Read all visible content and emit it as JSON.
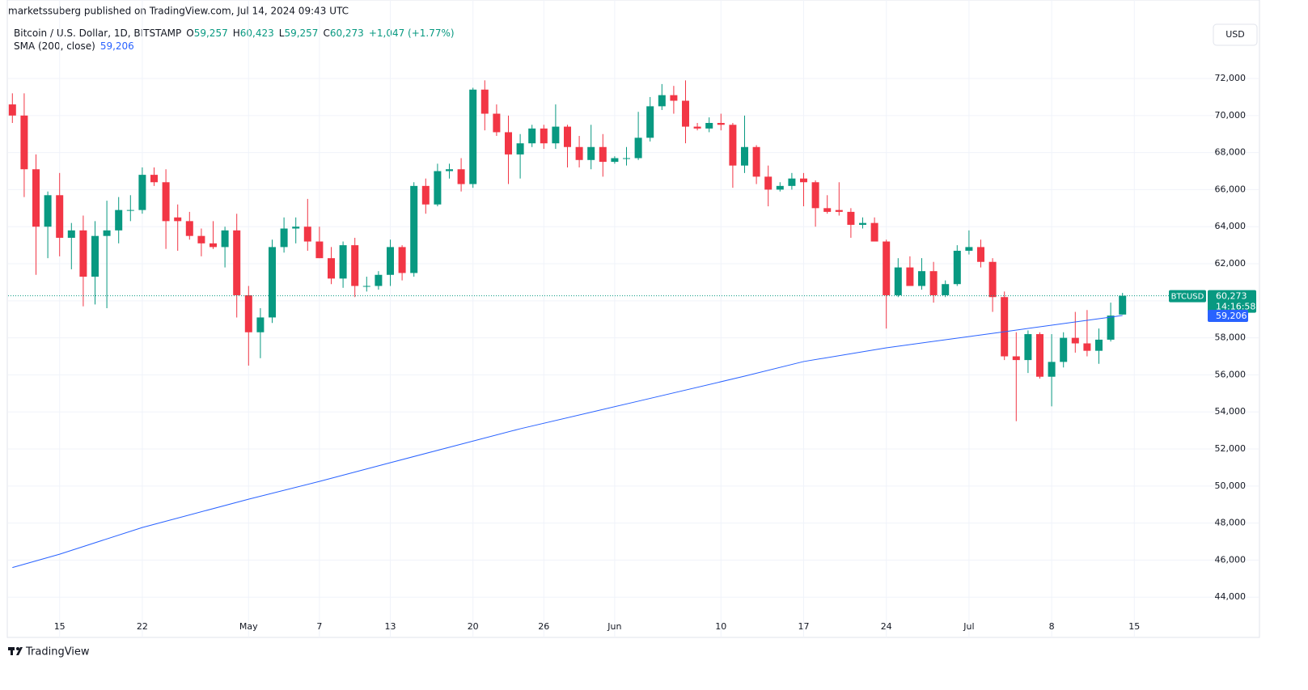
{
  "header": {
    "publisher": "marketssuberg published on TradingView.com, Jul 14, 2024 09:43 UTC"
  },
  "legend": {
    "symbol": "Bitcoin / U.S. Dollar, 1D, BITSTAMP",
    "ohlc": [
      {
        "key": "O",
        "value": "59,257"
      },
      {
        "key": "H",
        "value": "60,423"
      },
      {
        "key": "L",
        "value": "59,257"
      },
      {
        "key": "C",
        "value": "60,273"
      }
    ],
    "change": "+1,047 (+1.77%)",
    "sma_value": "59,206"
  },
  "currency": "USD",
  "last_price": {
    "symbol": "BTCUSD",
    "label": "60,273",
    "countdown": "14:16:58"
  },
  "sma_label": "59,206",
  "footer": {
    "brand": "TradingView"
  },
  "chart_data": {
    "type": "candlestick",
    "categories": [
      "Apr 11",
      "Apr 12",
      "Apr 13",
      "Apr 14",
      "Apr 15",
      "Apr 16",
      "Apr 17",
      "Apr 18",
      "Apr 19",
      "Apr 20",
      "Apr 21",
      "Apr 22",
      "Apr 23",
      "Apr 24",
      "Apr 25",
      "Apr 26",
      "Apr 27",
      "Apr 28",
      "Apr 29",
      "Apr 30",
      "May 1",
      "May 2",
      "May 3",
      "May 4",
      "May 5",
      "May 6",
      "May 7",
      "May 8",
      "May 9",
      "May 10",
      "May 11",
      "May 12",
      "May 13",
      "May 14",
      "May 15",
      "May 16",
      "May 17",
      "May 18",
      "May 19",
      "May 20",
      "May 21",
      "May 22",
      "May 23",
      "May 24",
      "May 25",
      "May 26",
      "May 27",
      "May 28",
      "May 29",
      "May 30",
      "May 31",
      "Jun 1",
      "Jun 2",
      "Jun 3",
      "Jun 4",
      "Jun 5",
      "Jun 6",
      "Jun 7",
      "Jun 8",
      "Jun 9",
      "Jun 10",
      "Jun 11",
      "Jun 12",
      "Jun 13",
      "Jun 14",
      "Jun 15",
      "Jun 16",
      "Jun 17",
      "Jun 18",
      "Jun 19",
      "Jun 20",
      "Jun 21",
      "Jun 22",
      "Jun 23",
      "Jun 24",
      "Jun 25",
      "Jun 26",
      "Jun 27",
      "Jun 28",
      "Jun 29",
      "Jun 30",
      "Jul 1",
      "Jul 2",
      "Jul 3",
      "Jul 4",
      "Jul 5",
      "Jul 6",
      "Jul 7",
      "Jul 8",
      "Jul 9",
      "Jul 10",
      "Jul 11",
      "Jul 12",
      "Jul 13",
      "Jul 14",
      "Jul 15"
    ],
    "open": [
      70600,
      70000,
      67100,
      64000,
      65700,
      63400,
      63800,
      61300,
      63500,
      63800,
      64900,
      64900,
      66800,
      66400,
      64500,
      64300,
      63500,
      63100,
      62900,
      63800,
      60300,
      58300,
      59100,
      62900,
      63900,
      64000,
      63200,
      62300,
      61200,
      63000,
      60800,
      60800,
      61400,
      62900,
      61500,
      66200,
      65200,
      67000,
      67100,
      66300,
      71400,
      70100,
      69100,
      67900,
      68500,
      69300,
      68500,
      69400,
      68300,
      67600,
      68300,
      67500,
      67700,
      67700,
      68800,
      70500,
      71100,
      70800,
      69400,
      69300,
      69600,
      69500,
      67300,
      68300,
      66700,
      66000,
      66200,
      66600,
      66400,
      65000,
      64900,
      64800,
      64100,
      64200,
      63200,
      60300,
      61800,
      60800,
      61600,
      60300,
      60900,
      62700,
      62900,
      62100,
      60200,
      57000,
      56800,
      58200,
      55900,
      56700,
      58000,
      57700,
      57300,
      57900,
      59257,
      null
    ],
    "high": [
      71200,
      71200,
      67900,
      65900,
      66900,
      64200,
      64600,
      64300,
      65400,
      65600,
      65700,
      67200,
      67200,
      67100,
      65200,
      64800,
      63900,
      64300,
      64000,
      64700,
      60800,
      59600,
      63300,
      64500,
      64500,
      65500,
      64000,
      62900,
      63200,
      63400,
      61300,
      61600,
      63300,
      63000,
      66400,
      66600,
      67400,
      67400,
      67700,
      71500,
      71900,
      70600,
      70000,
      69000,
      69500,
      69500,
      70600,
      69500,
      68900,
      69500,
      69000,
      67800,
      68300,
      70200,
      71000,
      71700,
      71600,
      71900,
      69600,
      69900,
      70100,
      69600,
      70000,
      68400,
      67300,
      66400,
      66900,
      66900,
      66500,
      65700,
      66400,
      65000,
      64500,
      64500,
      63300,
      62300,
      62400,
      62300,
      62100,
      61100,
      63000,
      63800,
      63300,
      62300,
      60500,
      58300,
      58400,
      58300,
      58200,
      58300,
      59400,
      59500,
      58500,
      59900,
      60423,
      null
    ],
    "low": [
      69600,
      65600,
      61400,
      62300,
      62400,
      61700,
      59700,
      59800,
      59600,
      63100,
      64300,
      64700,
      66200,
      62800,
      62700,
      63300,
      62400,
      62800,
      61800,
      59100,
      56500,
      56900,
      58800,
      62600,
      63100,
      62700,
      62300,
      60900,
      60700,
      60200,
      60500,
      60600,
      60800,
      61100,
      61300,
      64700,
      65100,
      66600,
      65900,
      66100,
      69200,
      68900,
      66300,
      66600,
      68300,
      68200,
      68200,
      67200,
      67200,
      67100,
      66700,
      67400,
      67300,
      67600,
      68600,
      70300,
      70100,
      68500,
      69200,
      69100,
      69200,
      66100,
      66900,
      66300,
      65100,
      65900,
      66000,
      65100,
      64000,
      64700,
      64600,
      63400,
      63900,
      63300,
      58500,
      60200,
      60800,
      60600,
      59900,
      60200,
      60800,
      62500,
      61800,
      59400,
      56800,
      53500,
      56100,
      55800,
      54300,
      56400,
      57200,
      57000,
      56600,
      57800,
      59257,
      null
    ],
    "close": [
      70000,
      67100,
      64000,
      65700,
      63400,
      63800,
      61300,
      63500,
      63800,
      64900,
      64900,
      66800,
      66400,
      64300,
      64300,
      63500,
      63100,
      62900,
      63800,
      60300,
      58300,
      59100,
      62900,
      63900,
      64000,
      63200,
      62300,
      61200,
      63000,
      60800,
      60800,
      61400,
      62900,
      61500,
      66200,
      65200,
      67000,
      67100,
      66300,
      71400,
      70100,
      69100,
      67900,
      68500,
      69300,
      68500,
      69400,
      68300,
      67600,
      68300,
      67500,
      67700,
      67700,
      68800,
      70500,
      71100,
      70800,
      69400,
      69300,
      69600,
      69500,
      67300,
      68300,
      66700,
      66000,
      66200,
      66600,
      66400,
      65000,
      64800,
      64800,
      64100,
      64200,
      63200,
      60300,
      61800,
      60800,
      61600,
      60300,
      60900,
      62700,
      62900,
      62100,
      60200,
      57000,
      56800,
      58200,
      55900,
      56700,
      58000,
      57700,
      57300,
      57900,
      59200,
      60273,
      null
    ],
    "up_color": "#089981",
    "down_color": "#f23645",
    "series": [
      {
        "name": "SMA (200, close)",
        "color": "#2962ff",
        "x": [
          "Apr 11",
          "Apr 15",
          "Apr 22",
          "May 1",
          "May 7",
          "May 13",
          "May 24",
          "Jun 3",
          "Jun 12",
          "Jun 17",
          "Jun 24",
          "Jul 4",
          "Jul 9",
          "Jul 14"
        ],
        "values": [
          45600,
          46320,
          47760,
          49290,
          50250,
          51260,
          53090,
          54580,
          55930,
          56720,
          57460,
          58330,
          58770,
          59206
        ]
      }
    ],
    "ylim": [
      41870,
      76150
    ],
    "yticks": [
      {
        "value": 44000,
        "label": "44,000"
      },
      {
        "value": 46000,
        "label": "46,000"
      },
      {
        "value": 48000,
        "label": "48,000"
      },
      {
        "value": 50000,
        "label": "50,000"
      },
      {
        "value": 52000,
        "label": "52,000"
      },
      {
        "value": 54000,
        "label": "54,000"
      },
      {
        "value": 56000,
        "label": "56,000"
      },
      {
        "value": 58000,
        "label": "58,000"
      },
      {
        "value": 60000,
        "label": "60,000"
      },
      {
        "value": 62000,
        "label": "62,000"
      },
      {
        "value": 64000,
        "label": "64,000"
      },
      {
        "value": 66000,
        "label": "66,000"
      },
      {
        "value": 68000,
        "label": "68,000"
      },
      {
        "value": 70000,
        "label": "70,000"
      },
      {
        "value": 72000,
        "label": "72,000"
      }
    ],
    "xticks": [
      {
        "value": "Apr 15",
        "label": "15"
      },
      {
        "value": "Apr 22",
        "label": "22"
      },
      {
        "value": "May 1",
        "label": "May"
      },
      {
        "value": "May 7",
        "label": "7"
      },
      {
        "value": "May 13",
        "label": "13"
      },
      {
        "value": "May 20",
        "label": "20"
      },
      {
        "value": "May 26",
        "label": "26"
      },
      {
        "value": "Jun 1",
        "label": "Jun"
      },
      {
        "value": "Jun 10",
        "label": "10"
      },
      {
        "value": "Jun 17",
        "label": "17"
      },
      {
        "value": "Jun 24",
        "label": "24"
      },
      {
        "value": "Jul 1",
        "label": "Jul"
      },
      {
        "value": "Jul 8",
        "label": "8"
      },
      {
        "value": "Jul 15",
        "label": "15"
      }
    ],
    "grid": true
  }
}
